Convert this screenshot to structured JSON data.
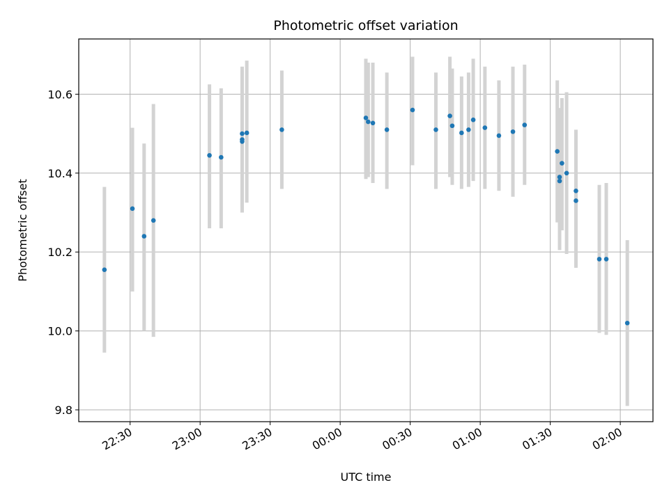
{
  "chart_data": {
    "type": "scatter",
    "title": "Photometric offset variation",
    "xlabel": "UTC time",
    "ylabel": "Photometric offset",
    "x_ticks": [
      "22:30",
      "23:00",
      "23:30",
      "00:00",
      "00:30",
      "01:00",
      "01:30",
      "02:00"
    ],
    "y_ticks": [
      "9.8",
      "10.0",
      "10.2",
      "10.4",
      "10.6"
    ],
    "xlim": [
      "22:08",
      "02:14"
    ],
    "ylim": [
      9.77,
      10.74
    ],
    "grid": true,
    "colors": {
      "point": "#1f77b4",
      "errorbar": "#d3d3d3",
      "grid": "#b0b0b0"
    },
    "series": [
      {
        "points": [
          {
            "x": "22:19",
            "y": 10.155,
            "ylo": 9.945,
            "yhi": 10.365
          },
          {
            "x": "22:31",
            "y": 10.31,
            "ylo": 10.1,
            "yhi": 10.515
          },
          {
            "x": "22:36",
            "y": 10.24,
            "ylo": 10.0,
            "yhi": 10.475
          },
          {
            "x": "22:40",
            "y": 10.28,
            "ylo": 9.985,
            "yhi": 10.575
          },
          {
            "x": "23:04",
            "y": 10.445,
            "ylo": 10.26,
            "yhi": 10.625
          },
          {
            "x": "23:09",
            "y": 10.44,
            "ylo": 10.26,
            "yhi": 10.615
          },
          {
            "x": "23:18",
            "y": 10.485,
            "ylo": 10.315,
            "yhi": 10.66
          },
          {
            "x": "23:18",
            "y": 10.5,
            "ylo": 10.305,
            "yhi": 10.67
          },
          {
            "x": "23:18",
            "y": 10.48,
            "ylo": 10.3,
            "yhi": 10.66
          },
          {
            "x": "23:20",
            "y": 10.502,
            "ylo": 10.325,
            "yhi": 10.685
          },
          {
            "x": "23:35",
            "y": 10.51,
            "ylo": 10.36,
            "yhi": 10.66
          },
          {
            "x": "00:11",
            "y": 10.54,
            "ylo": 10.385,
            "yhi": 10.69
          },
          {
            "x": "00:12",
            "y": 10.53,
            "ylo": 10.39,
            "yhi": 10.68
          },
          {
            "x": "00:14",
            "y": 10.527,
            "ylo": 10.375,
            "yhi": 10.68
          },
          {
            "x": "00:20",
            "y": 10.51,
            "ylo": 10.36,
            "yhi": 10.655
          },
          {
            "x": "00:31",
            "y": 10.56,
            "ylo": 10.42,
            "yhi": 10.695
          },
          {
            "x": "00:41",
            "y": 10.51,
            "ylo": 10.36,
            "yhi": 10.655
          },
          {
            "x": "00:47",
            "y": 10.545,
            "ylo": 10.39,
            "yhi": 10.695
          },
          {
            "x": "00:48",
            "y": 10.52,
            "ylo": 10.37,
            "yhi": 10.665
          },
          {
            "x": "00:52",
            "y": 10.502,
            "ylo": 10.36,
            "yhi": 10.645
          },
          {
            "x": "00:55",
            "y": 10.51,
            "ylo": 10.365,
            "yhi": 10.655
          },
          {
            "x": "00:57",
            "y": 10.535,
            "ylo": 10.38,
            "yhi": 10.69
          },
          {
            "x": "01:02",
            "y": 10.515,
            "ylo": 10.36,
            "yhi": 10.67
          },
          {
            "x": "01:08",
            "y": 10.495,
            "ylo": 10.355,
            "yhi": 10.635
          },
          {
            "x": "01:14",
            "y": 10.505,
            "ylo": 10.34,
            "yhi": 10.67
          },
          {
            "x": "01:19",
            "y": 10.522,
            "ylo": 10.37,
            "yhi": 10.675
          },
          {
            "x": "01:33",
            "y": 10.455,
            "ylo": 10.275,
            "yhi": 10.635
          },
          {
            "x": "01:34",
            "y": 10.39,
            "ylo": 10.215,
            "yhi": 10.56
          },
          {
            "x": "01:34",
            "y": 10.38,
            "ylo": 10.205,
            "yhi": 10.565
          },
          {
            "x": "01:35",
            "y": 10.425,
            "ylo": 10.255,
            "yhi": 10.59
          },
          {
            "x": "01:37",
            "y": 10.4,
            "ylo": 10.195,
            "yhi": 10.605
          },
          {
            "x": "01:41",
            "y": 10.355,
            "ylo": 10.2,
            "yhi": 10.51
          },
          {
            "x": "01:41",
            "y": 10.33,
            "ylo": 10.16,
            "yhi": 10.495
          },
          {
            "x": "01:51",
            "y": 10.182,
            "ylo": 9.995,
            "yhi": 10.37
          },
          {
            "x": "01:54",
            "y": 10.182,
            "ylo": 9.99,
            "yhi": 10.375
          },
          {
            "x": "02:03",
            "y": 10.02,
            "ylo": 9.81,
            "yhi": 10.23
          }
        ]
      }
    ]
  }
}
